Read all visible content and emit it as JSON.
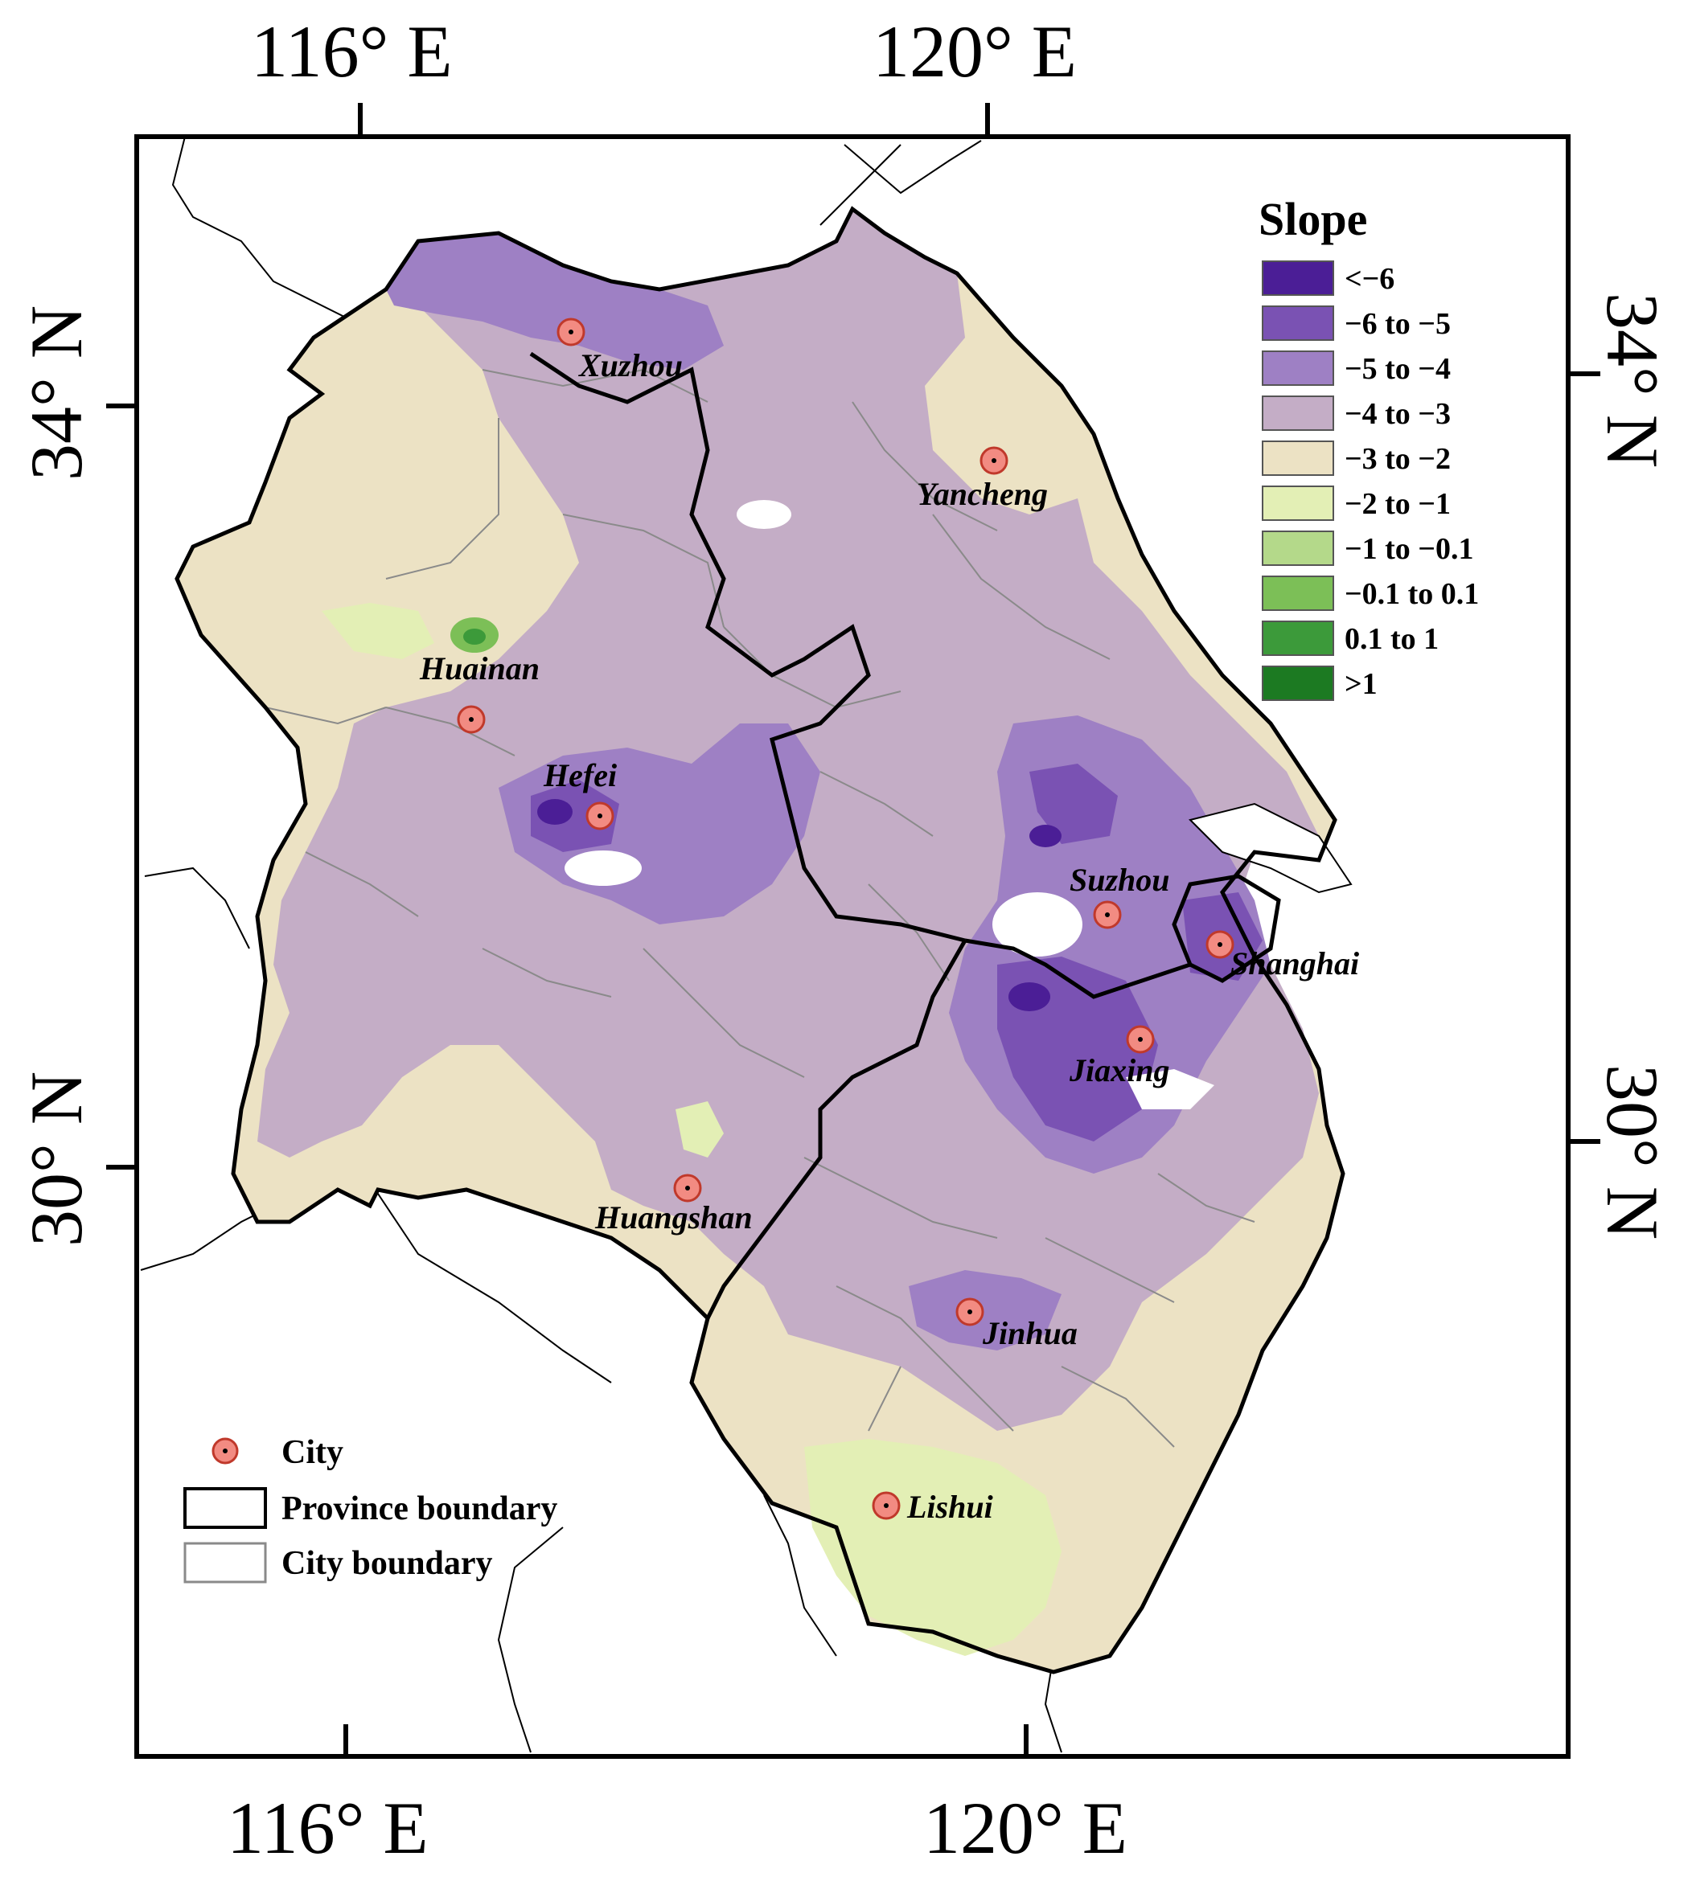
{
  "axes": {
    "top": [
      "116° E",
      "120° E"
    ],
    "bottom": [
      "116° E",
      "120° E"
    ],
    "left": [
      "34° N",
      "30° N"
    ],
    "right": [
      "34° N",
      "30° N"
    ]
  },
  "legend": {
    "title": "Slope",
    "classes": [
      {
        "label": "<−6",
        "color": "#4b1e96"
      },
      {
        "label": "−6 to −5",
        "color": "#7a52b3"
      },
      {
        "label": "−5 to −4",
        "color": "#9e80c4"
      },
      {
        "label": "−4 to −3",
        "color": "#c4adc6"
      },
      {
        "label": "−3 to −2",
        "color": "#ece2c4"
      },
      {
        "label": "−2 to −1",
        "color": "#e3efb5"
      },
      {
        "label": "−1 to −0.1",
        "color": "#b4d98a"
      },
      {
        "label": "−0.1 to 0.1",
        "color": "#7cbf57"
      },
      {
        "label": "0.1 to 1",
        "color": "#3c9a3a"
      },
      {
        "label": ">1",
        "color": "#1c7a22"
      }
    ]
  },
  "key": {
    "city": "City",
    "province": "Province boundary",
    "cityBoundary": "City boundary"
  },
  "cities": [
    {
      "name": "Xuzhou"
    },
    {
      "name": "Yancheng"
    },
    {
      "name": "Huainan"
    },
    {
      "name": "Hefei"
    },
    {
      "name": "Suzhou"
    },
    {
      "name": "Shanghai"
    },
    {
      "name": "Jiaxing"
    },
    {
      "name": "Huangshan"
    },
    {
      "name": "Jinhua"
    },
    {
      "name": "Lishui"
    }
  ],
  "colors": {
    "cityMarker": "#f28b82",
    "cityMarkerStroke": "#c0392b",
    "frame": "#000000",
    "provinceBoundary": "#000000",
    "cityBoundary": "#8a8a8a"
  }
}
